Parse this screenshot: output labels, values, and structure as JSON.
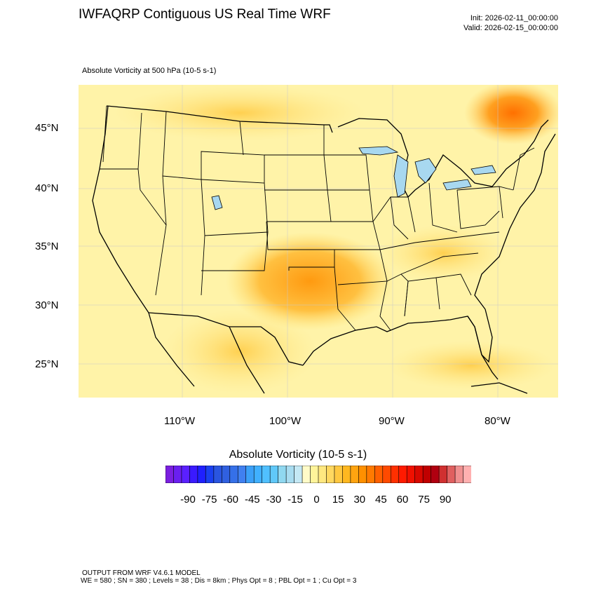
{
  "header": {
    "title": "IWFAQRP Contiguous US Real Time WRF",
    "init": "Init: 2026-02-11_00:00:00",
    "valid": "Valid: 2026-02-15_00:00:00",
    "field_label": "Absolute Vorticity at 500 hPa   (10-5 s-1)"
  },
  "map": {
    "lat_labels": [
      "45°N",
      "40°N",
      "35°N",
      "30°N",
      "25°N"
    ],
    "lon_labels": [
      "110°W",
      "100°W",
      "90°W",
      "80°W"
    ],
    "background_color": "#fff3a8",
    "border_color": "#000000",
    "lake_color": "#a8d8f0"
  },
  "colorbar": {
    "title": "Absolute Vorticity  (10-5 s-1)",
    "tick_labels": [
      "-90",
      "-75",
      "-60",
      "-45",
      "-30",
      "-15",
      "0",
      "15",
      "30",
      "45",
      "60",
      "75",
      "90"
    ],
    "colors": [
      "#7b1fe0",
      "#6a1ff0",
      "#5a20ff",
      "#3a1aff",
      "#1f20ff",
      "#1a40f0",
      "#2a55e0",
      "#3060e0",
      "#3570e8",
      "#4080f0",
      "#3ba0f8",
      "#40b0ff",
      "#50c0ff",
      "#60c8f8",
      "#90d8f0",
      "#a8dcf0",
      "#c4e8f4",
      "#fffbc8",
      "#fff49a",
      "#ffe880",
      "#ffd860",
      "#ffc840",
      "#ffb820",
      "#ffa410",
      "#ff9000",
      "#ff7a00",
      "#ff6000",
      "#ff4a00",
      "#ff3000",
      "#ff1a00",
      "#f01000",
      "#d80800",
      "#c00000",
      "#b00010",
      "#d03030",
      "#e06060",
      "#f09090",
      "#ffb0b0"
    ]
  },
  "footer": {
    "line1": "OUTPUT FROM WRF V4.6.1 MODEL",
    "line2": "WE = 580 ; SN = 380 ; Levels = 38 ; Dis = 8km ; Phys Opt = 8 ; PBL Opt = 1 ; Cu Opt = 3"
  }
}
